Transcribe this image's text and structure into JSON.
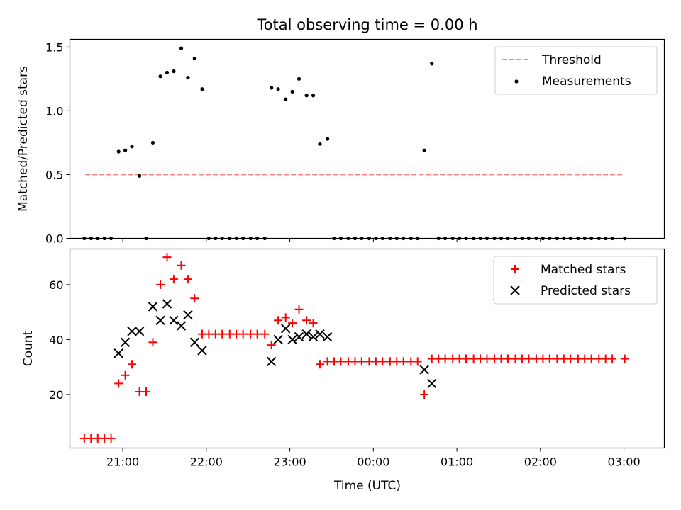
{
  "title": "Total observing time = 0.00 h",
  "colors": {
    "threshold": "#ff8080",
    "measurements": "#000000",
    "matched": "#ff0000",
    "predicted": "#000000"
  },
  "chart_data": [
    {
      "type": "scatter",
      "title": "Total observing time = 0.00 h",
      "ylabel": "Matched/Predicted stars",
      "xlabel": "",
      "xlim": [
        -0.6333,
        6.4833
      ],
      "ylim": [
        0,
        1.56
      ],
      "x_ticks": [
        {
          "value": 0,
          "label": "21:00"
        },
        {
          "value": 1,
          "label": "22:00"
        },
        {
          "value": 2,
          "label": "23:00"
        },
        {
          "value": 3,
          "label": "00:00"
        },
        {
          "value": 4,
          "label": "01:00"
        },
        {
          "value": 5,
          "label": "02:00"
        },
        {
          "value": 6,
          "label": "03:00"
        }
      ],
      "y_ticks": [
        {
          "value": 0.0,
          "label": "0.0"
        },
        {
          "value": 0.5,
          "label": "0.5"
        },
        {
          "value": 1.0,
          "label": "1.0"
        },
        {
          "value": 1.5,
          "label": "1.5"
        }
      ],
      "legend": {
        "position": "top-right",
        "entries": [
          "Threshold",
          "Measurements"
        ]
      },
      "threshold": {
        "name": "Threshold",
        "y": 0.5,
        "x_start": -0.45,
        "x_end": 5.98
      },
      "series": [
        {
          "name": "Measurements",
          "points": [
            [
              -0.46,
              0
            ],
            [
              -0.38,
              0
            ],
            [
              -0.3,
              0
            ],
            [
              -0.22,
              0
            ],
            [
              -0.14,
              0
            ],
            [
              -0.05,
              0.68
            ],
            [
              0.03,
              0.69
            ],
            [
              0.11,
              0.72
            ],
            [
              0.2,
              0.49
            ],
            [
              0.28,
              0
            ],
            [
              0.36,
              0.75
            ],
            [
              0.45,
              1.27
            ],
            [
              0.53,
              1.3
            ],
            [
              0.61,
              1.31
            ],
            [
              0.7,
              1.49
            ],
            [
              0.78,
              1.26
            ],
            [
              0.86,
              1.41
            ],
            [
              0.95,
              1.17
            ],
            [
              1.03,
              0
            ],
            [
              1.11,
              0
            ],
            [
              1.19,
              0
            ],
            [
              1.28,
              0
            ],
            [
              1.36,
              0
            ],
            [
              1.44,
              0
            ],
            [
              1.53,
              0
            ],
            [
              1.61,
              0
            ],
            [
              1.7,
              0
            ],
            [
              1.78,
              1.18
            ],
            [
              1.86,
              1.17
            ],
            [
              1.95,
              1.09
            ],
            [
              2.03,
              1.15
            ],
            [
              2.11,
              1.25
            ],
            [
              2.2,
              1.12
            ],
            [
              2.28,
              1.12
            ],
            [
              2.36,
              0.74
            ],
            [
              2.45,
              0.78
            ],
            [
              2.53,
              0
            ],
            [
              2.61,
              0
            ],
            [
              2.7,
              0
            ],
            [
              2.78,
              0
            ],
            [
              2.86,
              0
            ],
            [
              2.95,
              0
            ],
            [
              3.03,
              0
            ],
            [
              3.11,
              0
            ],
            [
              3.2,
              0
            ],
            [
              3.28,
              0
            ],
            [
              3.36,
              0
            ],
            [
              3.45,
              0
            ],
            [
              3.53,
              0
            ],
            [
              3.61,
              0.69
            ],
            [
              3.7,
              1.37
            ],
            [
              3.78,
              0
            ],
            [
              3.86,
              0
            ],
            [
              3.95,
              0
            ],
            [
              4.03,
              0
            ],
            [
              4.11,
              0
            ],
            [
              4.2,
              0
            ],
            [
              4.28,
              0
            ],
            [
              4.36,
              0
            ],
            [
              4.45,
              0
            ],
            [
              4.53,
              0
            ],
            [
              4.61,
              0
            ],
            [
              4.7,
              0
            ],
            [
              4.78,
              0
            ],
            [
              4.86,
              0
            ],
            [
              4.95,
              0
            ],
            [
              5.03,
              0
            ],
            [
              5.11,
              0
            ],
            [
              5.2,
              0
            ],
            [
              5.28,
              0
            ],
            [
              5.36,
              0
            ],
            [
              5.45,
              0
            ],
            [
              5.53,
              0
            ],
            [
              5.61,
              0
            ],
            [
              5.7,
              0
            ],
            [
              5.78,
              0
            ],
            [
              5.86,
              0
            ],
            [
              6.01,
              0
            ]
          ]
        }
      ]
    },
    {
      "type": "scatter",
      "title": "",
      "ylabel": "Count",
      "xlabel": "Time (UTC)",
      "xlim": [
        -0.6333,
        6.4833
      ],
      "ylim": [
        0.5,
        73
      ],
      "x_ticks": [
        {
          "value": 0,
          "label": "21:00"
        },
        {
          "value": 1,
          "label": "22:00"
        },
        {
          "value": 2,
          "label": "23:00"
        },
        {
          "value": 3,
          "label": "00:00"
        },
        {
          "value": 4,
          "label": "01:00"
        },
        {
          "value": 5,
          "label": "02:00"
        },
        {
          "value": 6,
          "label": "03:00"
        }
      ],
      "y_ticks": [
        {
          "value": 20,
          "label": "20"
        },
        {
          "value": 40,
          "label": "40"
        },
        {
          "value": 60,
          "label": "60"
        }
      ],
      "legend": {
        "position": "top-right",
        "entries": [
          "Matched stars",
          "Predicted stars"
        ]
      },
      "series": [
        {
          "name": "Matched stars",
          "marker": "plus",
          "points": [
            [
              -0.46,
              4
            ],
            [
              -0.38,
              4
            ],
            [
              -0.3,
              4
            ],
            [
              -0.22,
              4
            ],
            [
              -0.14,
              4
            ],
            [
              -0.05,
              24
            ],
            [
              0.03,
              27
            ],
            [
              0.11,
              31
            ],
            [
              0.2,
              21
            ],
            [
              0.28,
              21
            ],
            [
              0.36,
              39
            ],
            [
              0.45,
              60
            ],
            [
              0.53,
              70
            ],
            [
              0.61,
              62
            ],
            [
              0.7,
              67
            ],
            [
              0.78,
              62
            ],
            [
              0.86,
              55
            ],
            [
              0.95,
              42
            ],
            [
              1.03,
              42
            ],
            [
              1.11,
              42
            ],
            [
              1.19,
              42
            ],
            [
              1.28,
              42
            ],
            [
              1.36,
              42
            ],
            [
              1.44,
              42
            ],
            [
              1.53,
              42
            ],
            [
              1.61,
              42
            ],
            [
              1.7,
              42
            ],
            [
              1.78,
              38
            ],
            [
              1.86,
              47
            ],
            [
              1.95,
              48
            ],
            [
              2.03,
              46
            ],
            [
              2.11,
              51
            ],
            [
              2.2,
              47
            ],
            [
              2.28,
              46
            ],
            [
              2.36,
              31
            ],
            [
              2.45,
              32
            ],
            [
              2.53,
              32
            ],
            [
              2.61,
              32
            ],
            [
              2.7,
              32
            ],
            [
              2.78,
              32
            ],
            [
              2.86,
              32
            ],
            [
              2.95,
              32
            ],
            [
              3.03,
              32
            ],
            [
              3.11,
              32
            ],
            [
              3.2,
              32
            ],
            [
              3.28,
              32
            ],
            [
              3.36,
              32
            ],
            [
              3.45,
              32
            ],
            [
              3.53,
              32
            ],
            [
              3.61,
              20
            ],
            [
              3.7,
              33
            ],
            [
              3.78,
              33
            ],
            [
              3.86,
              33
            ],
            [
              3.95,
              33
            ],
            [
              4.03,
              33
            ],
            [
              4.11,
              33
            ],
            [
              4.2,
              33
            ],
            [
              4.28,
              33
            ],
            [
              4.36,
              33
            ],
            [
              4.45,
              33
            ],
            [
              4.53,
              33
            ],
            [
              4.61,
              33
            ],
            [
              4.7,
              33
            ],
            [
              4.78,
              33
            ],
            [
              4.86,
              33
            ],
            [
              4.95,
              33
            ],
            [
              5.03,
              33
            ],
            [
              5.11,
              33
            ],
            [
              5.2,
              33
            ],
            [
              5.28,
              33
            ],
            [
              5.36,
              33
            ],
            [
              5.45,
              33
            ],
            [
              5.53,
              33
            ],
            [
              5.61,
              33
            ],
            [
              5.7,
              33
            ],
            [
              5.78,
              33
            ],
            [
              5.86,
              33
            ],
            [
              6.01,
              33
            ]
          ]
        },
        {
          "name": "Predicted stars",
          "marker": "x",
          "points": [
            [
              -0.05,
              35
            ],
            [
              0.03,
              39
            ],
            [
              0.11,
              43
            ],
            [
              0.2,
              43
            ],
            [
              0.36,
              52
            ],
            [
              0.45,
              47
            ],
            [
              0.53,
              53
            ],
            [
              0.61,
              47
            ],
            [
              0.7,
              45
            ],
            [
              0.78,
              49
            ],
            [
              0.86,
              39
            ],
            [
              0.95,
              36
            ],
            [
              1.78,
              32
            ],
            [
              1.86,
              40
            ],
            [
              1.95,
              44
            ],
            [
              2.03,
              40
            ],
            [
              2.11,
              41
            ],
            [
              2.2,
              42
            ],
            [
              2.28,
              41
            ],
            [
              2.36,
              42
            ],
            [
              2.45,
              41
            ],
            [
              3.61,
              29
            ],
            [
              3.7,
              24
            ]
          ]
        }
      ]
    }
  ]
}
